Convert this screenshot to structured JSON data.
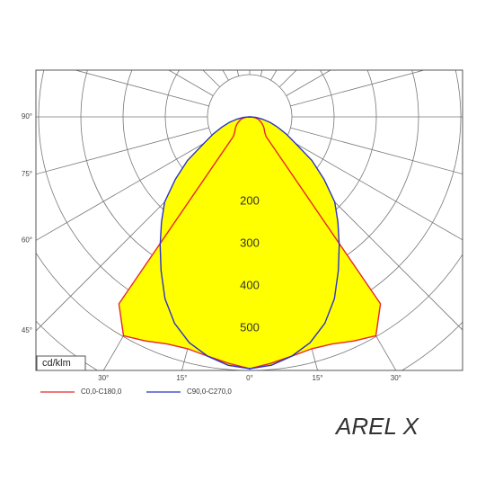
{
  "chart_data": {
    "type": "polar",
    "title": "AREL X",
    "unit_label": "cd/klm",
    "x": [
      -90,
      -85,
      -80,
      -75,
      -70,
      -65,
      -60,
      -55,
      -50,
      -45,
      -40,
      -35,
      -30,
      -25,
      -20,
      -15,
      -10,
      -5,
      0,
      5,
      10,
      15,
      20,
      25,
      30,
      35,
      40,
      45,
      50,
      55,
      60,
      65,
      70,
      75,
      80,
      85,
      90
    ],
    "series": [
      {
        "name": "C0,0-C180,0",
        "color": "#e8262a",
        "values": [
          0,
          8,
          15,
          20,
          25,
          30,
          35,
          40,
          45,
          50,
          60,
          540,
          598,
          585,
          572,
          568,
          575,
          585,
          596,
          585,
          575,
          568,
          572,
          585,
          598,
          540,
          60,
          50,
          45,
          40,
          35,
          30,
          25,
          20,
          15,
          8,
          0
        ]
      },
      {
        "name": "C90,0-C270,0",
        "color": "#2b33c8",
        "values": [
          0,
          15,
          30,
          50,
          70,
          95,
          125,
          180,
          230,
          285,
          325,
          370,
          420,
          475,
          520,
          553,
          575,
          590,
          596,
          590,
          575,
          553,
          520,
          475,
          420,
          370,
          325,
          285,
          230,
          180,
          125,
          95,
          70,
          50,
          30,
          15,
          0
        ]
      }
    ],
    "fill_color": "#ffff00",
    "rticks": [
      200,
      300,
      400,
      500
    ],
    "rgrid": [
      100,
      200,
      300,
      400,
      500,
      600,
      700,
      800,
      900
    ],
    "angle_grid": [
      -180,
      -165,
      -150,
      -135,
      -120,
      -105,
      -90,
      -75,
      -60,
      -45,
      -30,
      -15,
      0,
      15,
      30,
      45,
      60,
      75,
      90,
      105,
      120,
      135,
      150,
      165
    ],
    "yticks": [
      {
        "value": 90,
        "label": "90°"
      },
      {
        "value": 75,
        "label": "75°"
      },
      {
        "value": 60,
        "label": "60°"
      },
      {
        "value": 45,
        "label": "45°"
      }
    ],
    "xticks": [
      {
        "value": -30,
        "label": "30°"
      },
      {
        "value": -15,
        "label": "15°"
      },
      {
        "value": 0,
        "label": "0°"
      },
      {
        "value": 15,
        "label": "15°"
      },
      {
        "value": 30,
        "label": "30°"
      }
    ]
  }
}
